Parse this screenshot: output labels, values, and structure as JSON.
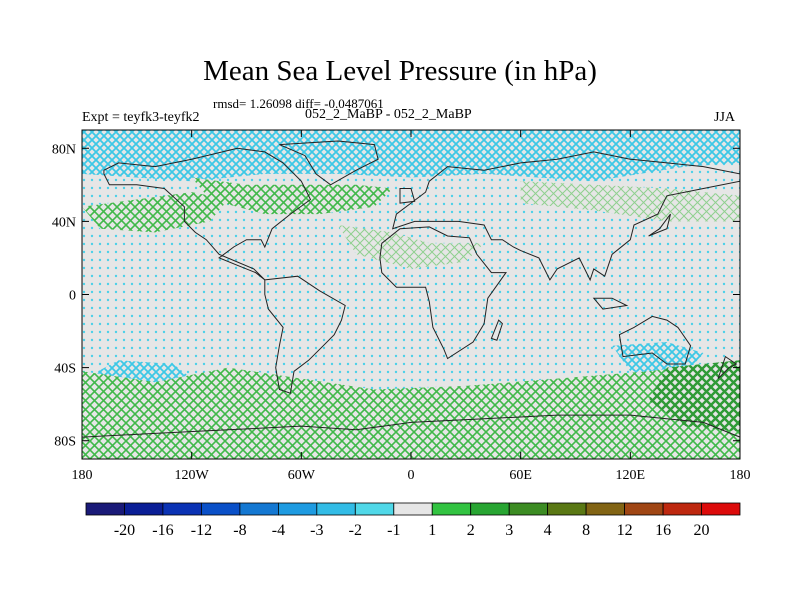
{
  "chart_data": {
    "type": "heatmap",
    "title": "Mean Sea Level Pressure (in hPa)",
    "stats_text": "rmsd= 1.26098 diff= -0.0487061",
    "left_label": "Expt = teyfk3-teyfk2",
    "center_label": "052_2_MaBP - 052_2_MaBP",
    "right_label": "JJA",
    "x_ticks": [
      {
        "value": -180,
        "label": "180"
      },
      {
        "value": -120,
        "label": "120W"
      },
      {
        "value": -60,
        "label": "60W"
      },
      {
        "value": 0,
        "label": "0"
      },
      {
        "value": 60,
        "label": "60E"
      },
      {
        "value": 120,
        "label": "120E"
      },
      {
        "value": 180,
        "label": "180"
      }
    ],
    "y_ticks": [
      {
        "value": 80,
        "label": "80N"
      },
      {
        "value": 40,
        "label": "40N"
      },
      {
        "value": 0,
        "label": "0"
      },
      {
        "value": -40,
        "label": "40S"
      },
      {
        "value": -80,
        "label": "80S"
      }
    ],
    "xlim": [
      -180,
      180
    ],
    "ylim": [
      -90,
      90
    ],
    "colorbar": {
      "levels": [
        "-20",
        "-16",
        "-12",
        "-8",
        "-4",
        "-3",
        "-2",
        "-1",
        "1",
        "2",
        "3",
        "4",
        "8",
        "12",
        "16",
        "20"
      ],
      "colors": [
        "#1a1a78",
        "#0a1e96",
        "#0a32b4",
        "#0a50c8",
        "#1478d2",
        "#1e9be1",
        "#32bce6",
        "#50d8e8",
        "#e6e6e6",
        "#32c341",
        "#28a532",
        "#3c8c23",
        "#5a7814",
        "#826414",
        "#a04614",
        "#be280f",
        "#dc0a0a"
      ]
    },
    "regions": [
      {
        "name": "arctic-negative",
        "value_range": "-3 to -1"
      },
      {
        "name": "southern-ocean-positive",
        "value_range": "1 to 3"
      },
      {
        "name": "north-pacific-positive",
        "value_range": "1 to 2"
      },
      {
        "name": "north-atlantic-positive",
        "value_range": "1 to 2"
      },
      {
        "name": "australia-negative",
        "value_range": "-2 to -1"
      },
      {
        "name": "west-pacific-positive",
        "value_range": "2 to 3"
      }
    ]
  }
}
